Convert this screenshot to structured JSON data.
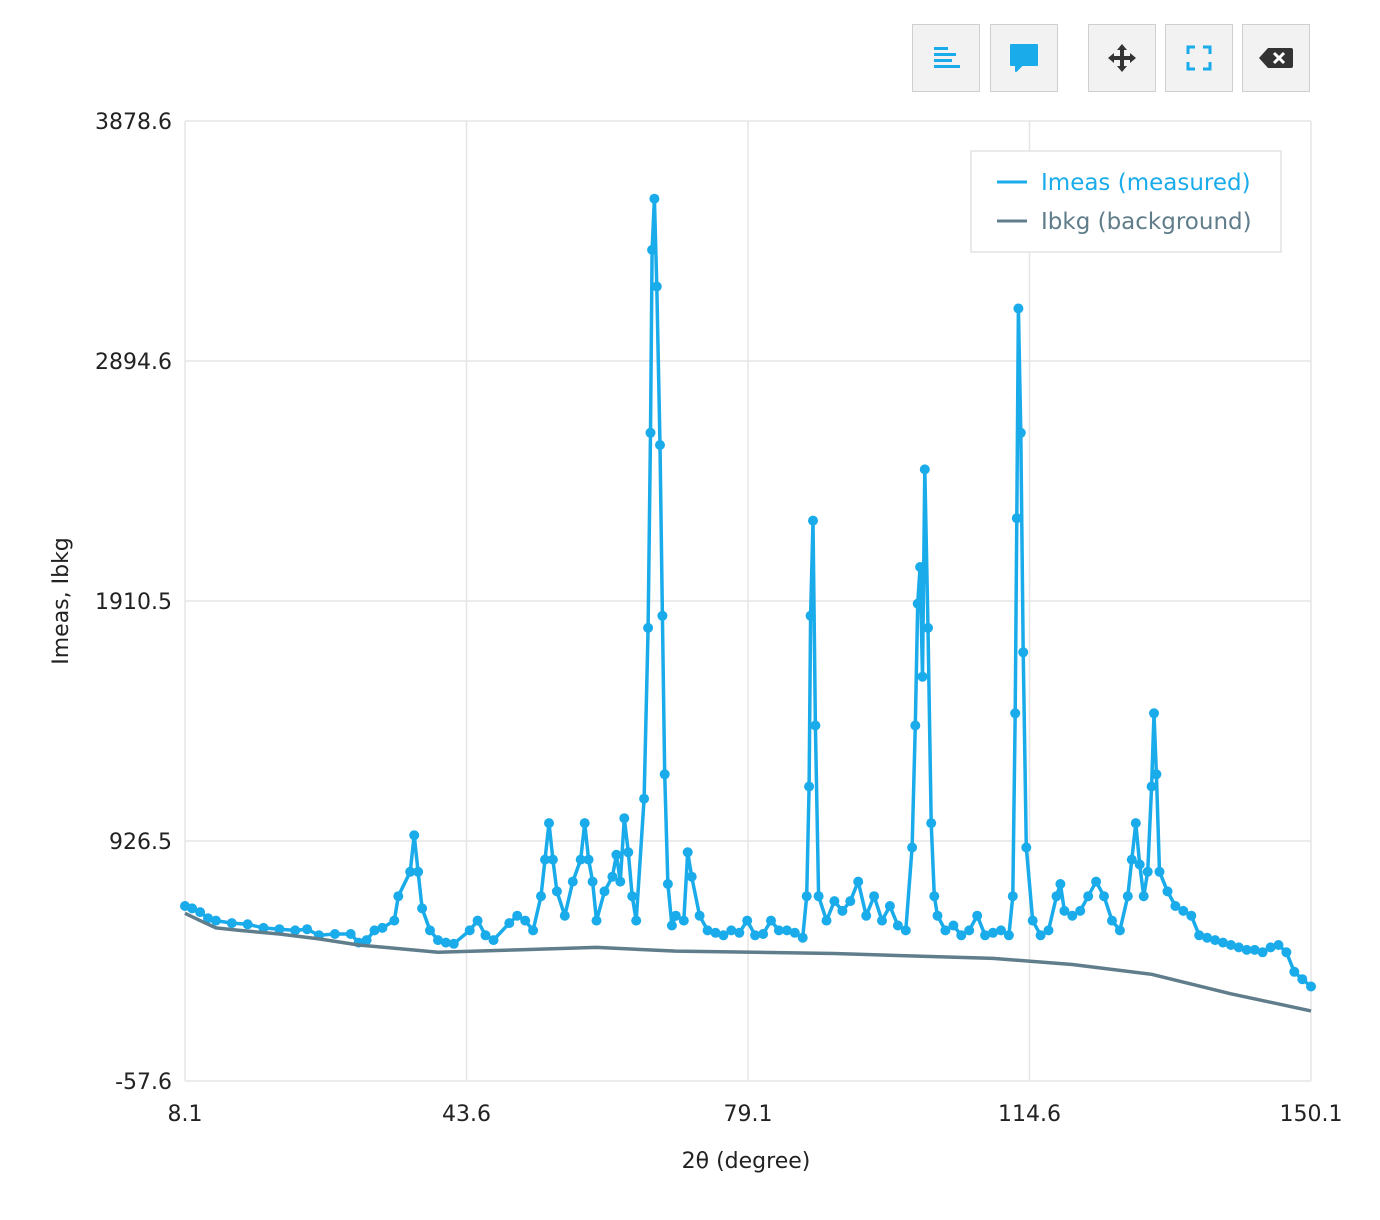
{
  "toolbar": {
    "buttons": [
      {
        "icon": "align-left-icon"
      },
      {
        "icon": "comment-icon"
      },
      {
        "icon": "move-icon"
      },
      {
        "icon": "fullscreen-icon"
      },
      {
        "icon": "clear-icon"
      }
    ]
  },
  "colors": {
    "measured": "#1aabea",
    "background": "#607d8b",
    "grid": "#e6e6e6"
  },
  "chart_data": {
    "type": "line",
    "xlabel": "2θ (degree)",
    "ylabel": "Imeas, Ibkg",
    "xlim": [
      8.1,
      150.1
    ],
    "ylim": [
      -57.6,
      3878.6
    ],
    "xticks": [
      "8.1",
      "43.6",
      "79.1",
      "114.6",
      "150.1"
    ],
    "yticks": [
      "-57.6",
      "926.5",
      "1910.5",
      "2894.6",
      "3878.6"
    ],
    "grid": true,
    "legend_position": "top-right",
    "series": [
      {
        "name": "Imeas (measured)",
        "markers": true,
        "points": [
          [
            8.1,
            660
          ],
          [
            9.0,
            650
          ],
          [
            10.0,
            635
          ],
          [
            11.0,
            610
          ],
          [
            12.0,
            600
          ],
          [
            14.0,
            590
          ],
          [
            16.0,
            585
          ],
          [
            18.0,
            570
          ],
          [
            20.0,
            565
          ],
          [
            22.0,
            560
          ],
          [
            23.5,
            565
          ],
          [
            25.0,
            540
          ],
          [
            27.0,
            545
          ],
          [
            29.0,
            545
          ],
          [
            30.0,
            510
          ],
          [
            31.0,
            520
          ],
          [
            32.0,
            560
          ],
          [
            33.0,
            570
          ],
          [
            34.5,
            600
          ],
          [
            35.0,
            700
          ],
          [
            36.5,
            800
          ],
          [
            37.0,
            950
          ],
          [
            37.5,
            800
          ],
          [
            38.0,
            650
          ],
          [
            39.0,
            560
          ],
          [
            40.0,
            520
          ],
          [
            41.0,
            510
          ],
          [
            42.0,
            505
          ],
          [
            44.0,
            560
          ],
          [
            45.0,
            600
          ],
          [
            46.0,
            540
          ],
          [
            47.0,
            520
          ],
          [
            49.0,
            590
          ],
          [
            50.0,
            620
          ],
          [
            51.0,
            600
          ],
          [
            52.0,
            560
          ],
          [
            53.0,
            700
          ],
          [
            53.5,
            850
          ],
          [
            54.0,
            1000
          ],
          [
            54.5,
            850
          ],
          [
            55.0,
            720
          ],
          [
            56.0,
            620
          ],
          [
            57.0,
            760
          ],
          [
            58.0,
            850
          ],
          [
            58.5,
            1000
          ],
          [
            59.0,
            850
          ],
          [
            59.5,
            760
          ],
          [
            60.0,
            600
          ],
          [
            61.0,
            720
          ],
          [
            62.0,
            780
          ],
          [
            62.5,
            870
          ],
          [
            63.0,
            760
          ],
          [
            63.5,
            1020
          ],
          [
            64.0,
            880
          ],
          [
            64.5,
            700
          ],
          [
            65.0,
            600
          ],
          [
            66.0,
            1100
          ],
          [
            66.5,
            1800
          ],
          [
            66.8,
            2600
          ],
          [
            67.0,
            3350
          ],
          [
            67.3,
            3560
          ],
          [
            67.6,
            3200
          ],
          [
            68.0,
            2550
          ],
          [
            68.3,
            1850
          ],
          [
            68.6,
            1200
          ],
          [
            69.0,
            750
          ],
          [
            69.5,
            580
          ],
          [
            70.0,
            620
          ],
          [
            71.0,
            600
          ],
          [
            71.5,
            880
          ],
          [
            72.0,
            780
          ],
          [
            73.0,
            620
          ],
          [
            74.0,
            560
          ],
          [
            75.0,
            550
          ],
          [
            76.0,
            540
          ],
          [
            77.0,
            560
          ],
          [
            78.0,
            550
          ],
          [
            79.0,
            600
          ],
          [
            80.0,
            540
          ],
          [
            81.0,
            545
          ],
          [
            82.0,
            600
          ],
          [
            83.0,
            560
          ],
          [
            84.0,
            560
          ],
          [
            85.0,
            550
          ],
          [
            86.0,
            530
          ],
          [
            86.5,
            700
          ],
          [
            86.8,
            1150
          ],
          [
            87.0,
            1850
          ],
          [
            87.3,
            2240
          ],
          [
            87.6,
            1400
          ],
          [
            88.0,
            700
          ],
          [
            89.0,
            600
          ],
          [
            90.0,
            680
          ],
          [
            91.0,
            640
          ],
          [
            92.0,
            680
          ],
          [
            93.0,
            760
          ],
          [
            94.0,
            620
          ],
          [
            95.0,
            700
          ],
          [
            96.0,
            600
          ],
          [
            97.0,
            660
          ],
          [
            98.0,
            580
          ],
          [
            99.0,
            560
          ],
          [
            99.8,
            900
          ],
          [
            100.2,
            1400
          ],
          [
            100.5,
            1900
          ],
          [
            100.8,
            2050
          ],
          [
            101.1,
            1600
          ],
          [
            101.4,
            2450
          ],
          [
            101.8,
            1800
          ],
          [
            102.2,
            1000
          ],
          [
            102.6,
            700
          ],
          [
            103.0,
            620
          ],
          [
            104.0,
            560
          ],
          [
            105.0,
            580
          ],
          [
            106.0,
            540
          ],
          [
            107.0,
            560
          ],
          [
            108.0,
            620
          ],
          [
            109.0,
            540
          ],
          [
            110.0,
            550
          ],
          [
            111.0,
            560
          ],
          [
            112.0,
            540
          ],
          [
            112.5,
            700
          ],
          [
            112.8,
            1450
          ],
          [
            113.0,
            2250
          ],
          [
            113.2,
            3110
          ],
          [
            113.5,
            2600
          ],
          [
            113.8,
            1700
          ],
          [
            114.2,
            900
          ],
          [
            115.0,
            600
          ],
          [
            116.0,
            540
          ],
          [
            117.0,
            560
          ],
          [
            118.0,
            700
          ],
          [
            118.5,
            750
          ],
          [
            119.0,
            640
          ],
          [
            120.0,
            620
          ],
          [
            121.0,
            640
          ],
          [
            122.0,
            700
          ],
          [
            123.0,
            760
          ],
          [
            124.0,
            700
          ],
          [
            125.0,
            600
          ],
          [
            126.0,
            560
          ],
          [
            127.0,
            700
          ],
          [
            127.5,
            850
          ],
          [
            128.0,
            1000
          ],
          [
            128.5,
            830
          ],
          [
            129.0,
            700
          ],
          [
            129.5,
            800
          ],
          [
            130.0,
            1150
          ],
          [
            130.3,
            1450
          ],
          [
            130.6,
            1200
          ],
          [
            131.0,
            800
          ],
          [
            132.0,
            720
          ],
          [
            133.0,
            660
          ],
          [
            134.0,
            640
          ],
          [
            135.0,
            620
          ],
          [
            136.0,
            540
          ],
          [
            137.0,
            530
          ],
          [
            138.0,
            520
          ],
          [
            139.0,
            510
          ],
          [
            140.0,
            500
          ],
          [
            141.0,
            490
          ],
          [
            142.0,
            480
          ],
          [
            143.0,
            480
          ],
          [
            144.0,
            470
          ],
          [
            145.0,
            490
          ],
          [
            146.0,
            500
          ],
          [
            147.0,
            470
          ],
          [
            148.0,
            390
          ],
          [
            149.0,
            360
          ],
          [
            150.1,
            330
          ]
        ]
      },
      {
        "name": "Ibkg (background)",
        "markers": false,
        "points": [
          [
            8.1,
            630
          ],
          [
            10.0,
            600
          ],
          [
            12.0,
            570
          ],
          [
            15.0,
            560
          ],
          [
            20.0,
            545
          ],
          [
            25.0,
            525
          ],
          [
            30.0,
            500
          ],
          [
            40.0,
            470
          ],
          [
            50.0,
            480
          ],
          [
            60.0,
            490
          ],
          [
            70.0,
            475
          ],
          [
            80.0,
            470
          ],
          [
            90.0,
            465
          ],
          [
            100.0,
            455
          ],
          [
            110.0,
            445
          ],
          [
            120.0,
            420
          ],
          [
            130.0,
            380
          ],
          [
            140.0,
            300
          ],
          [
            150.1,
            230
          ]
        ]
      }
    ]
  }
}
